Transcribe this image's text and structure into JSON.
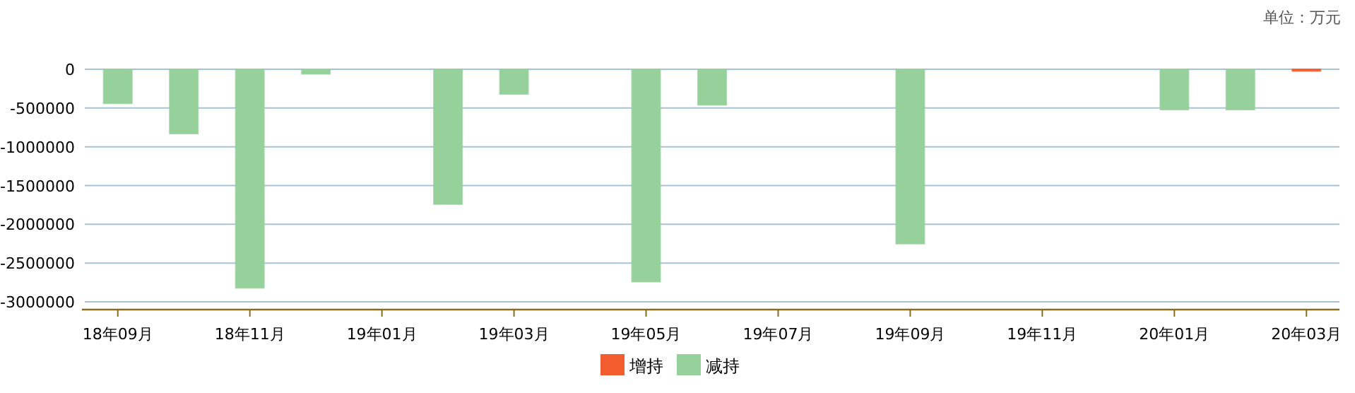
{
  "chart_data": {
    "type": "bar",
    "stacked": true,
    "annotations": [
      "单位：万元"
    ],
    "categories": [
      "18年09月",
      null,
      "18年11月",
      null,
      "19年01月",
      null,
      "19年03月",
      null,
      "19年05月",
      null,
      "19年07月",
      null,
      "19年09月",
      null,
      "19年11月",
      null,
      "20年01月",
      null,
      "20年03月"
    ],
    "series": [
      {
        "name": "增持",
        "color": "#f25c2f",
        "values": [
          null,
          null,
          null,
          null,
          null,
          null,
          null,
          null,
          null,
          null,
          null,
          null,
          null,
          null,
          null,
          null,
          null,
          null,
          0
        ]
      },
      {
        "name": "减持",
        "color": "#96d09b",
        "values": [
          -440000,
          -830000,
          -2820000,
          -60000,
          null,
          -1740000,
          -320000,
          null,
          -2740000,
          -460000,
          null,
          null,
          -2250000,
          null,
          null,
          null,
          -520000,
          -520000,
          null
        ]
      }
    ],
    "ylim": [
      -3100000,
      0
    ],
    "yticks": [
      0,
      -500000,
      -1000000,
      -1500000,
      -2000000,
      -2500000,
      -3000000
    ],
    "grid": "y",
    "legend": "bottom"
  }
}
